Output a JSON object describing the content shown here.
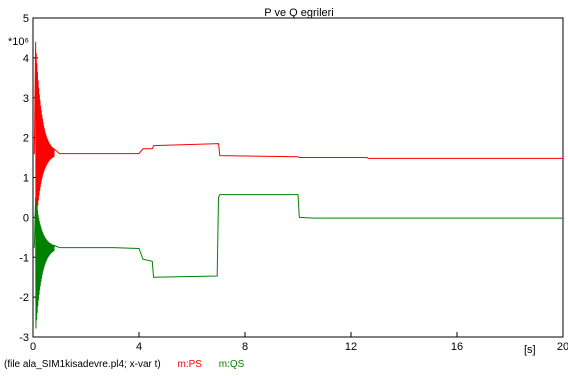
{
  "chart_data": {
    "type": "line",
    "title": "P ve Q egrileri",
    "scale_label": "*10⁶",
    "xlabel": "[s]",
    "xlim": [
      0,
      20
    ],
    "ylim": [
      -3,
      5
    ],
    "x_ticks": [
      0,
      4,
      8,
      12,
      16,
      20
    ],
    "y_ticks": [
      -3,
      -2,
      -1,
      0,
      1,
      2,
      3,
      4,
      5
    ],
    "series": [
      {
        "name": "m:PS",
        "color": "#ff0000",
        "x": [
          0,
          0.05,
          0.3,
          0.5,
          0.7,
          1.0,
          1.5,
          2.0,
          3.0,
          4.0,
          4.15,
          4.5,
          4.55,
          7.0,
          7.05,
          10.0,
          10.05,
          12.6,
          12.65,
          20.0
        ],
        "y": [
          1.6,
          1.6,
          1.62,
          1.6,
          1.6,
          1.6,
          1.6,
          1.6,
          1.6,
          1.6,
          1.72,
          1.72,
          1.8,
          1.85,
          1.55,
          1.52,
          1.5,
          1.5,
          1.48,
          1.48
        ],
        "oscillation": {
          "x_start": 0.1,
          "x_end": 0.8,
          "max": 4.4,
          "min": -0.3
        }
      },
      {
        "name": "m:QS",
        "color": "#008000",
        "x": [
          0,
          0.05,
          0.3,
          0.5,
          0.7,
          1.0,
          1.5,
          2.0,
          3.0,
          4.0,
          4.15,
          4.5,
          4.55,
          6.95,
          7.0,
          7.05,
          10.0,
          10.05,
          10.6,
          20.0
        ],
        "y": [
          -0.75,
          -0.75,
          -0.75,
          -0.75,
          -0.75,
          -0.76,
          -0.76,
          -0.76,
          -0.76,
          -0.78,
          -1.05,
          -1.1,
          -1.5,
          -1.47,
          0.5,
          0.57,
          0.57,
          0.0,
          -0.02,
          -0.02
        ],
        "oscillation": {
          "x_start": 0.1,
          "x_end": 0.8,
          "max": 0.5,
          "min": -2.9
        }
      }
    ],
    "legend_placement": "bottom-left",
    "grid": false
  },
  "footer": {
    "file_info": "(file ala_SIM1kisadevre.pl4; x-var t)",
    "legend_ps": "m:PS",
    "legend_qs": "m:QS"
  }
}
